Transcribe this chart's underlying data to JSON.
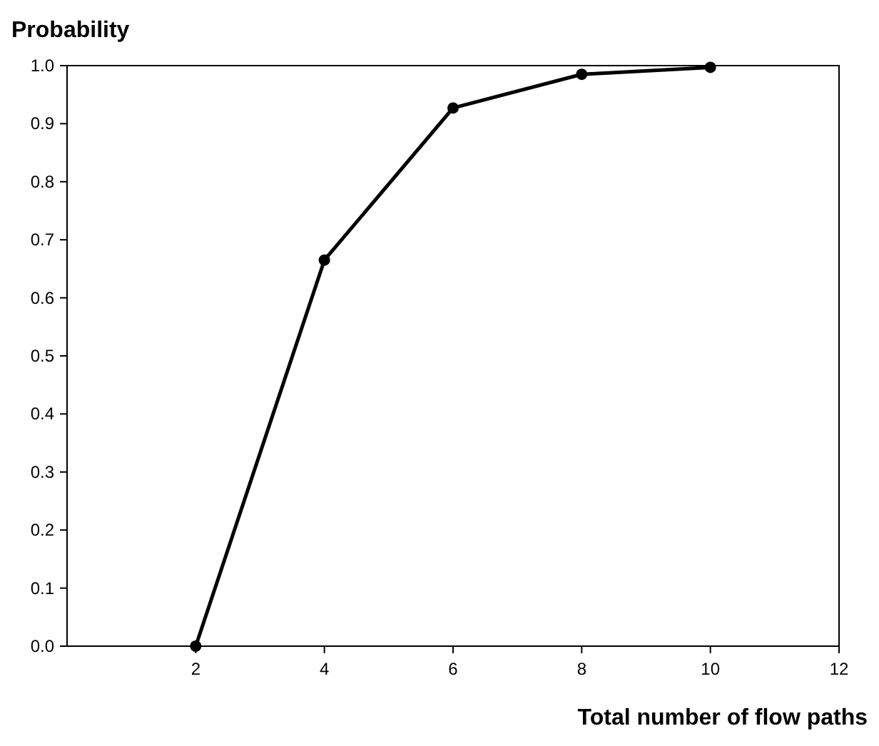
{
  "chart_data": {
    "type": "line",
    "xlabel": "Total number of flow paths",
    "ylabel": "Probability",
    "x": [
      2,
      4,
      6,
      8,
      10
    ],
    "series": [
      {
        "color": "#000000",
        "values": [
          0,
          0.665,
          0.927,
          0.985,
          0.997
        ]
      }
    ],
    "xlim": [
      0,
      12
    ],
    "xticks": [
      2,
      4,
      6,
      8,
      10,
      12
    ],
    "ylim": [
      0,
      1
    ],
    "yticks": [
      {
        "value": 0,
        "label": "0.0"
      },
      0.1,
      0.2,
      0.3,
      0.4,
      0.5,
      0.6,
      0.7,
      0.8,
      0.9,
      {
        "value": 1,
        "label": "1.0"
      }
    ],
    "grid": false,
    "marker": "circle",
    "line_style": "solid"
  }
}
